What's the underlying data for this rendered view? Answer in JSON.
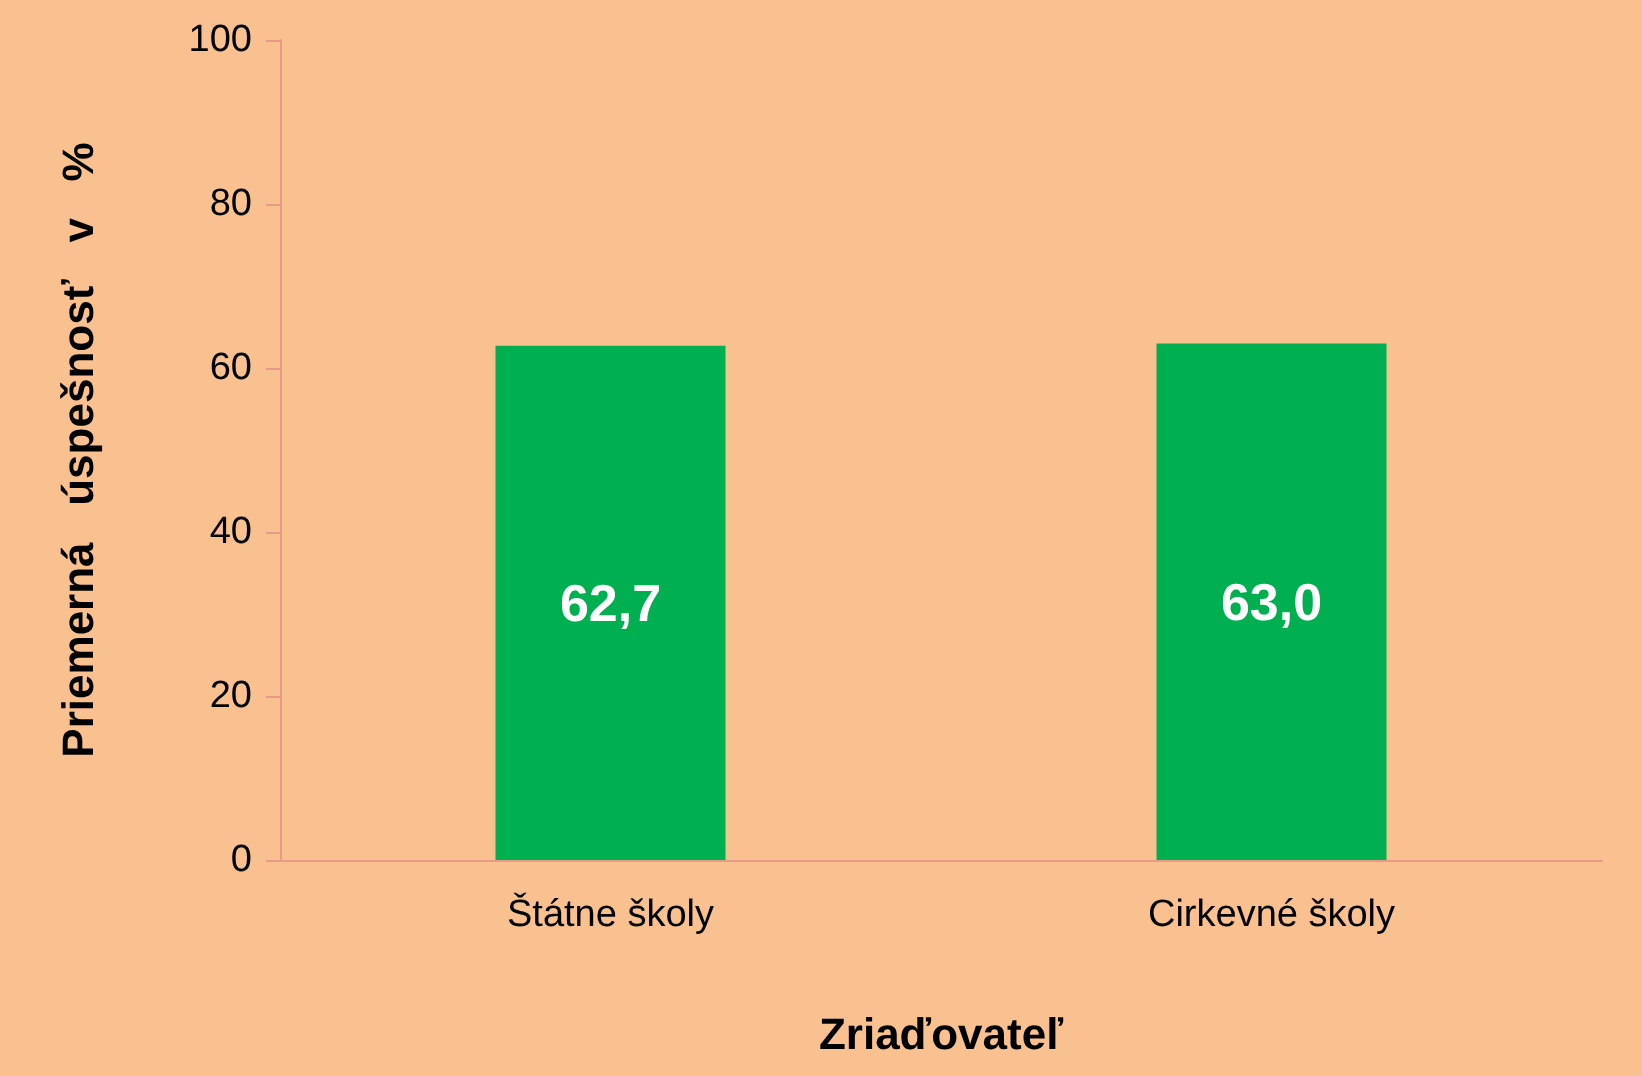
{
  "chart_data": {
    "type": "bar",
    "xlabel": "Zriaďovateľ",
    "ylabel": "Priemerná   úspešnosť   v   %",
    "categories": [
      "Štátne školy",
      "Cirkevné školy"
    ],
    "values": [
      62.7,
      63.0
    ],
    "value_labels": [
      "62,7",
      "63,0"
    ],
    "color": "#00b050",
    "ylim": [
      0,
      100
    ],
    "yticks": [
      0,
      20,
      40,
      60,
      80,
      100
    ],
    "grid": false
  }
}
